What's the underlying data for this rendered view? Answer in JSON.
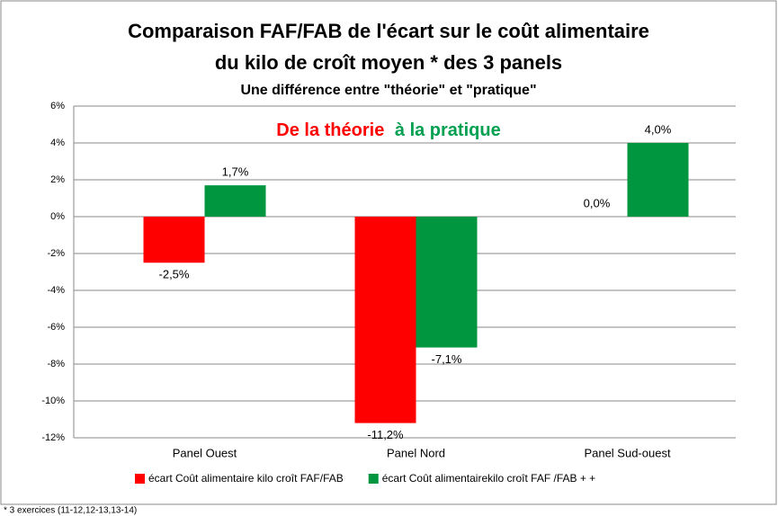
{
  "chart_data": {
    "type": "bar",
    "title": "Comparaison FAF/FAB de l'écart sur le coût alimentaire",
    "title_line2": "du kilo de croît  moyen *  des 3 panels",
    "subtitle": "Une différence entre \"théorie\" et \"pratique\"",
    "annotations": [
      {
        "text": "De la théorie",
        "color": "#ff0000"
      },
      {
        "text": "à la pratique",
        "color": "#00a050"
      }
    ],
    "footnote": "* 3 exercices (11-12,12-13,13-14)",
    "categories": [
      "Panel Ouest",
      "Panel Nord",
      "Panel Sud-ouest"
    ],
    "series": [
      {
        "name": "écart Coût alimentaire kilo croît FAF/FAB",
        "color": "#ff0000",
        "values": [
          -2.5,
          -11.2,
          0.0
        ],
        "value_labels": [
          "-2,5%",
          "-11,2%",
          "0,0%"
        ]
      },
      {
        "name": "écart Coût alimentairekilo croît FAF /FAB + +",
        "color": "#00953f",
        "values": [
          1.7,
          -7.1,
          4.0
        ],
        "value_labels": [
          "1,7%",
          "-7,1%",
          "4,0%"
        ]
      }
    ],
    "ylim": [
      -12,
      6
    ],
    "yticks": [
      {
        "value": 6,
        "label": "6%"
      },
      {
        "value": 4,
        "label": "4%"
      },
      {
        "value": 2,
        "label": "2%"
      },
      {
        "value": 0,
        "label": "0%"
      },
      {
        "value": -2,
        "label": "-2%"
      },
      {
        "value": -4,
        "label": "-4%"
      },
      {
        "value": -6,
        "label": "-6%"
      },
      {
        "value": -8,
        "label": "-8%"
      },
      {
        "value": -10,
        "label": "-10%"
      },
      {
        "value": -12,
        "label": "-12%"
      }
    ],
    "grid": true,
    "legend": "bottom"
  }
}
